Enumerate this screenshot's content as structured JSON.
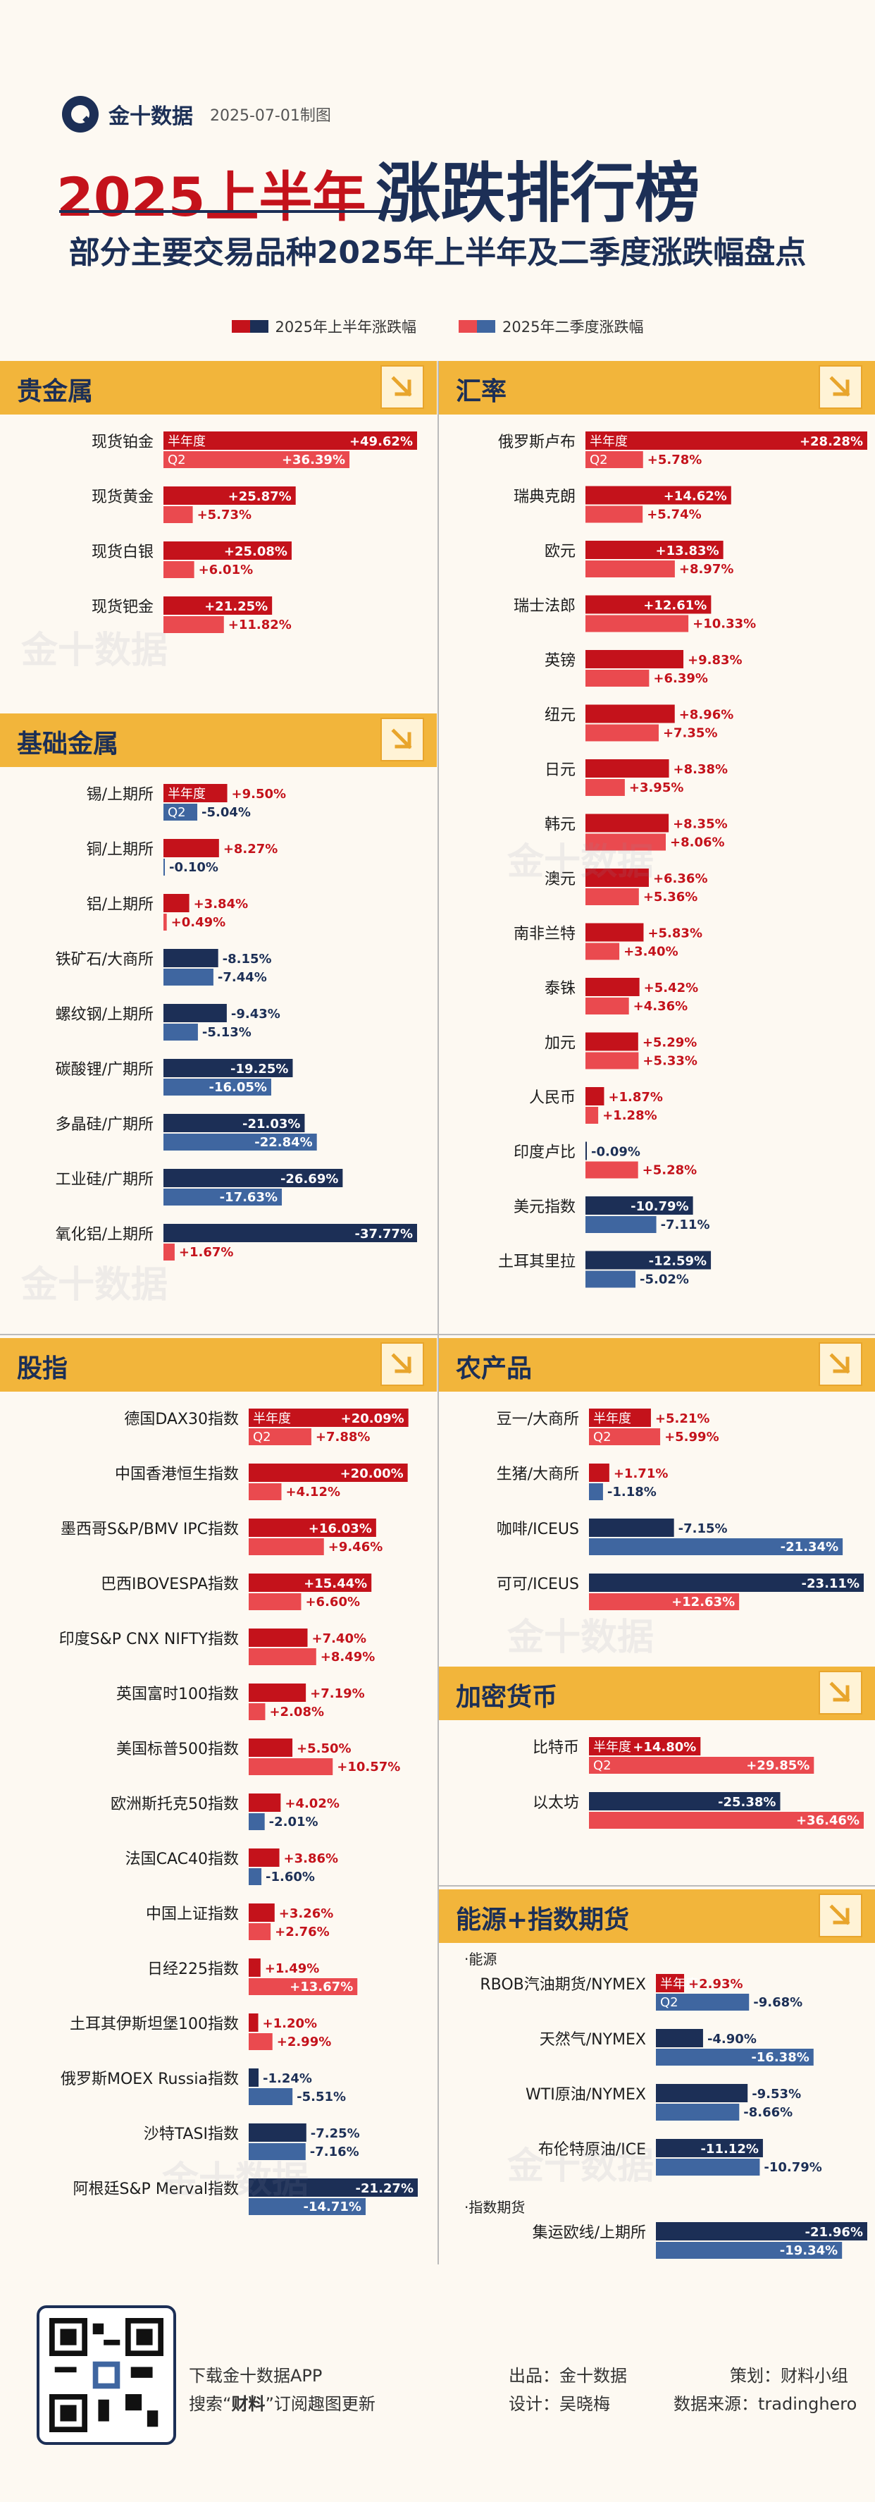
{
  "header": {
    "brand": "金十数据",
    "date": "2025-07-01制图",
    "title_red": "2025上半年",
    "title_dark": "涨跌排行榜",
    "subtitle": "部分主要交易品种2025年上半年及二季度涨跌幅盘点",
    "legend_h1": "2025年上半年涨跌幅",
    "legend_q2": "2025年二季度涨跌幅",
    "watermark": "金十数据"
  },
  "colors": {
    "pos_h1": "#c4121b",
    "pos_q2": "#ea4a4f",
    "neg_h1": "#1c2f56",
    "neg_q2": "#3f66a0",
    "section": "#f2b53b"
  },
  "chart_data": [
    {
      "type": "bar",
      "title": "贵金属",
      "bar_labels": [
        "半年度",
        "Q2"
      ],
      "categories": [
        "现货铂金",
        "现货黄金",
        "现货白银",
        "现货钯金"
      ],
      "series": [
        {
          "name": "2025年上半年涨跌幅",
          "values": [
            49.62,
            25.87,
            25.08,
            21.25
          ]
        },
        {
          "name": "2025年二季度涨跌幅",
          "values": [
            36.39,
            5.73,
            6.01,
            11.82
          ]
        }
      ]
    },
    {
      "type": "bar",
      "title": "基础金属",
      "bar_labels": [
        "半年度",
        "Q2"
      ],
      "categories": [
        "锡/上期所",
        "铜/上期所",
        "铝/上期所",
        "铁矿石/大商所",
        "螺纹钢/上期所",
        "碳酸锂/广期所",
        "多晶硅/广期所",
        "工业硅/广期所",
        "氧化铝/上期所"
      ],
      "series": [
        {
          "name": "2025年上半年涨跌幅",
          "values": [
            9.5,
            8.27,
            3.84,
            -8.15,
            -9.43,
            -19.25,
            -21.03,
            -26.69,
            -37.77
          ]
        },
        {
          "name": "2025年二季度涨跌幅",
          "values": [
            -5.04,
            -0.1,
            0.49,
            -7.44,
            -5.13,
            -16.05,
            -22.84,
            -17.63,
            1.67
          ]
        }
      ]
    },
    {
      "type": "bar",
      "title": "汇率",
      "bar_labels": [
        "半年度",
        "Q2"
      ],
      "categories": [
        "俄罗斯卢布",
        "瑞典克朗",
        "欧元",
        "瑞士法郎",
        "英镑",
        "纽元",
        "日元",
        "韩元",
        "澳元",
        "南非兰特",
        "泰铢",
        "加元",
        "人民币",
        "印度卢比",
        "美元指数",
        "土耳其里拉"
      ],
      "series": [
        {
          "name": "2025年上半年涨跌幅",
          "values": [
            28.28,
            14.62,
            13.83,
            12.61,
            9.83,
            8.96,
            8.38,
            8.35,
            6.36,
            5.83,
            5.42,
            5.29,
            1.87,
            -0.09,
            -10.79,
            -12.59
          ]
        },
        {
          "name": "2025年二季度涨跌幅",
          "values": [
            5.78,
            5.74,
            8.97,
            10.33,
            6.39,
            7.35,
            3.95,
            8.06,
            5.36,
            3.4,
            4.36,
            5.33,
            1.28,
            5.28,
            -7.11,
            -5.02
          ]
        }
      ]
    },
    {
      "type": "bar",
      "title": "股指",
      "bar_labels": [
        "半年度",
        "Q2"
      ],
      "categories": [
        "德国DAX30指数",
        "中国香港恒生指数",
        "墨西哥S&P/BMV IPC指数",
        "巴西IBOVESPA指数",
        "印度S&P CNX NIFTY指数",
        "英国富时100指数",
        "美国标普500指数",
        "欧洲斯托克50指数",
        "法国CAC40指数",
        "中国上证指数",
        "日经225指数",
        "土耳其伊斯坦堡100指数",
        "俄罗斯MOEX Russia指数",
        "沙特TASI指数",
        "阿根廷S&P Merval指数"
      ],
      "series": [
        {
          "name": "2025年上半年涨跌幅",
          "values": [
            20.09,
            20.0,
            16.03,
            15.44,
            7.4,
            7.19,
            5.5,
            4.02,
            3.86,
            3.26,
            1.49,
            1.2,
            -1.24,
            -7.25,
            -21.27
          ]
        },
        {
          "name": "2025年二季度涨跌幅",
          "values": [
            7.88,
            4.12,
            9.46,
            6.6,
            8.49,
            2.08,
            10.57,
            -2.01,
            -1.6,
            2.76,
            13.67,
            2.99,
            -5.51,
            -7.16,
            -14.71
          ]
        }
      ]
    },
    {
      "type": "bar",
      "title": "农产品",
      "bar_labels": [
        "半年度",
        "Q2"
      ],
      "categories": [
        "豆一/大商所",
        "生猪/大商所",
        "咖啡/ICEUS",
        "可可/ICEUS"
      ],
      "series": [
        {
          "name": "2025年上半年涨跌幅",
          "values": [
            5.21,
            1.71,
            -7.15,
            -23.11
          ]
        },
        {
          "name": "2025年二季度涨跌幅",
          "values": [
            5.99,
            -1.18,
            -21.34,
            12.63
          ]
        }
      ]
    },
    {
      "type": "bar",
      "title": "加密货币",
      "bar_labels": [
        "半年度",
        "Q2"
      ],
      "categories": [
        "比特币",
        "以太坊"
      ],
      "series": [
        {
          "name": "2025年上半年涨跌幅",
          "values": [
            14.8,
            -25.38
          ]
        },
        {
          "name": "2025年二季度涨跌幅",
          "values": [
            29.85,
            36.46
          ]
        }
      ]
    },
    {
      "type": "bar",
      "title": "能源+指数期货",
      "bar_labels": [
        "半年度",
        "Q2"
      ],
      "groups": [
        {
          "label": "·能源",
          "start": 0
        },
        {
          "label": "·指数期货",
          "start": 4
        }
      ],
      "categories": [
        "RBOB汽油期货/NYMEX",
        "天然气/NYMEX",
        "WTI原油/NYMEX",
        "布伦特原油/ICE",
        "集运欧线/上期所"
      ],
      "series": [
        {
          "name": "2025年上半年涨跌幅",
          "values": [
            2.93,
            -4.9,
            -9.53,
            -11.12,
            -21.96
          ]
        },
        {
          "name": "2025年二季度涨跌幅",
          "values": [
            -9.68,
            -16.38,
            -8.66,
            -10.79,
            -19.34
          ]
        }
      ]
    }
  ],
  "footer": {
    "download": "下载金十数据APP",
    "search_pre": "搜索“",
    "search_key": "财料",
    "search_post": "”订阅趣图更新",
    "producer": "出品：金十数据",
    "planner": "策划：财料小组",
    "designer": "设计：吴晓梅",
    "source": "数据来源：tradinghero"
  }
}
